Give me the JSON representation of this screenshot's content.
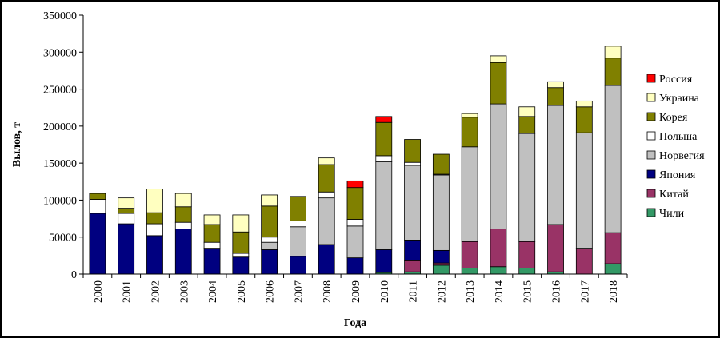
{
  "chart_data": {
    "type": "bar",
    "stacked": true,
    "xlabel": "Года",
    "ylabel": "Вылов, т",
    "ylim": [
      0,
      350000
    ],
    "yticks": [
      0,
      50000,
      100000,
      150000,
      200000,
      250000,
      300000,
      350000
    ],
    "legend_position": "right",
    "categories": [
      "2000",
      "2001",
      "2002",
      "2003",
      "2004",
      "2005",
      "2006",
      "2007",
      "2008",
      "2009",
      "2010",
      "2011",
      "2012",
      "2013",
      "2014",
      "2015",
      "2016",
      "2017",
      "2018"
    ],
    "series": [
      {
        "name": "Чили",
        "color": "#339966",
        "values": [
          0,
          0,
          0,
          0,
          0,
          0,
          0,
          0,
          0,
          0,
          2000,
          3000,
          12000,
          8000,
          10000,
          8000,
          3000,
          0,
          14000
        ]
      },
      {
        "name": "Китай",
        "color": "#993366",
        "values": [
          0,
          0,
          0,
          0,
          0,
          0,
          0,
          0,
          0,
          0,
          0,
          15000,
          3000,
          36000,
          51000,
          36000,
          64000,
          35000,
          42000
        ]
      },
      {
        "name": "Япония",
        "color": "#000080",
        "values": [
          82000,
          68000,
          52000,
          61000,
          35000,
          23000,
          33000,
          24000,
          40000,
          22000,
          31000,
          28000,
          17000,
          0,
          0,
          0,
          0,
          0,
          0
        ]
      },
      {
        "name": "Норвегия",
        "color": "#c0c0c0",
        "values": [
          0,
          0,
          0,
          0,
          0,
          0,
          10000,
          40000,
          63000,
          43000,
          119000,
          101000,
          102000,
          128000,
          169000,
          146000,
          161000,
          156000,
          199000
        ]
      },
      {
        "name": "Польша",
        "color": "#ffffff",
        "values": [
          19000,
          14000,
          16000,
          9000,
          8000,
          5000,
          7000,
          8000,
          8000,
          9000,
          8000,
          4000,
          1000,
          0,
          0,
          0,
          0,
          0,
          0
        ]
      },
      {
        "name": "Корея",
        "color": "#808000",
        "values": [
          8000,
          7000,
          15000,
          21000,
          24000,
          29000,
          42000,
          33000,
          37000,
          43000,
          45000,
          31000,
          27000,
          40000,
          56000,
          23000,
          24000,
          35000,
          37000
        ]
      },
      {
        "name": "Украина",
        "color": "#ffffc0",
        "values": [
          0,
          14000,
          32000,
          18000,
          13000,
          23000,
          15000,
          0,
          9000,
          0,
          0,
          0,
          0,
          5000,
          9000,
          13000,
          8000,
          8000,
          16000
        ]
      },
      {
        "name": "Россия",
        "color": "#ff0000",
        "values": [
          0,
          0,
          0,
          0,
          0,
          0,
          0,
          0,
          0,
          9000,
          8000,
          0,
          0,
          0,
          0,
          0,
          0,
          0,
          0
        ]
      }
    ]
  }
}
